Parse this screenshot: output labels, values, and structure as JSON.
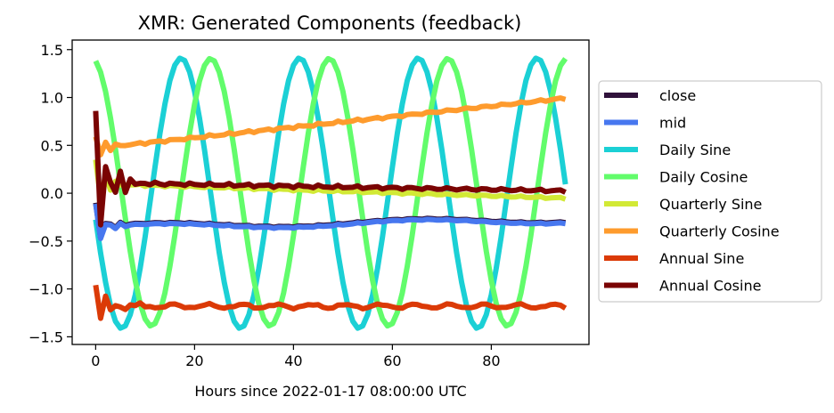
{
  "chart_data": {
    "type": "line",
    "title": "XMR: Generated Components (feedback)",
    "xlabel": "Hours since 2022-01-17 08:00:00 UTC",
    "ylabel": "",
    "xlim": [
      -4.75,
      99.75
    ],
    "ylim": [
      -1.58,
      1.6
    ],
    "xticks": [
      0,
      20,
      40,
      60,
      80
    ],
    "yticks": [
      -1.5,
      -1.0,
      -0.5,
      0.0,
      0.5,
      1.0,
      1.5
    ],
    "ytick_labels": [
      "−1.5",
      "−1.0",
      "−0.5",
      "0.0",
      "0.5",
      "1.0",
      "1.5"
    ],
    "grid": false,
    "legend_position": "outside-right",
    "series": [
      {
        "name": "close",
        "color": "#30123b",
        "kind": "close"
      },
      {
        "name": "mid",
        "color": "#4777ef",
        "kind": "mid"
      },
      {
        "name": "Daily Sine",
        "color": "#1bd0d5",
        "kind": "daily_sin",
        "amplitude": 1.42,
        "period_hours": 24,
        "phase_shift_hours": 0.75
      },
      {
        "name": "Daily Cosine",
        "color": "#62fc6b",
        "kind": "daily_cos",
        "amplitude": 1.42,
        "period_hours": 24,
        "phase_shift_hours": 0.75
      },
      {
        "name": "Quarterly Sine",
        "color": "#d2e935",
        "kind": "q_sin"
      },
      {
        "name": "Quarterly Cosine",
        "color": "#fe9b2d",
        "kind": "q_cos"
      },
      {
        "name": "Annual Sine",
        "color": "#db3a07",
        "kind": "a_sin"
      },
      {
        "name": "Annual Cosine",
        "color": "#7a0403",
        "kind": "a_cos"
      }
    ]
  }
}
